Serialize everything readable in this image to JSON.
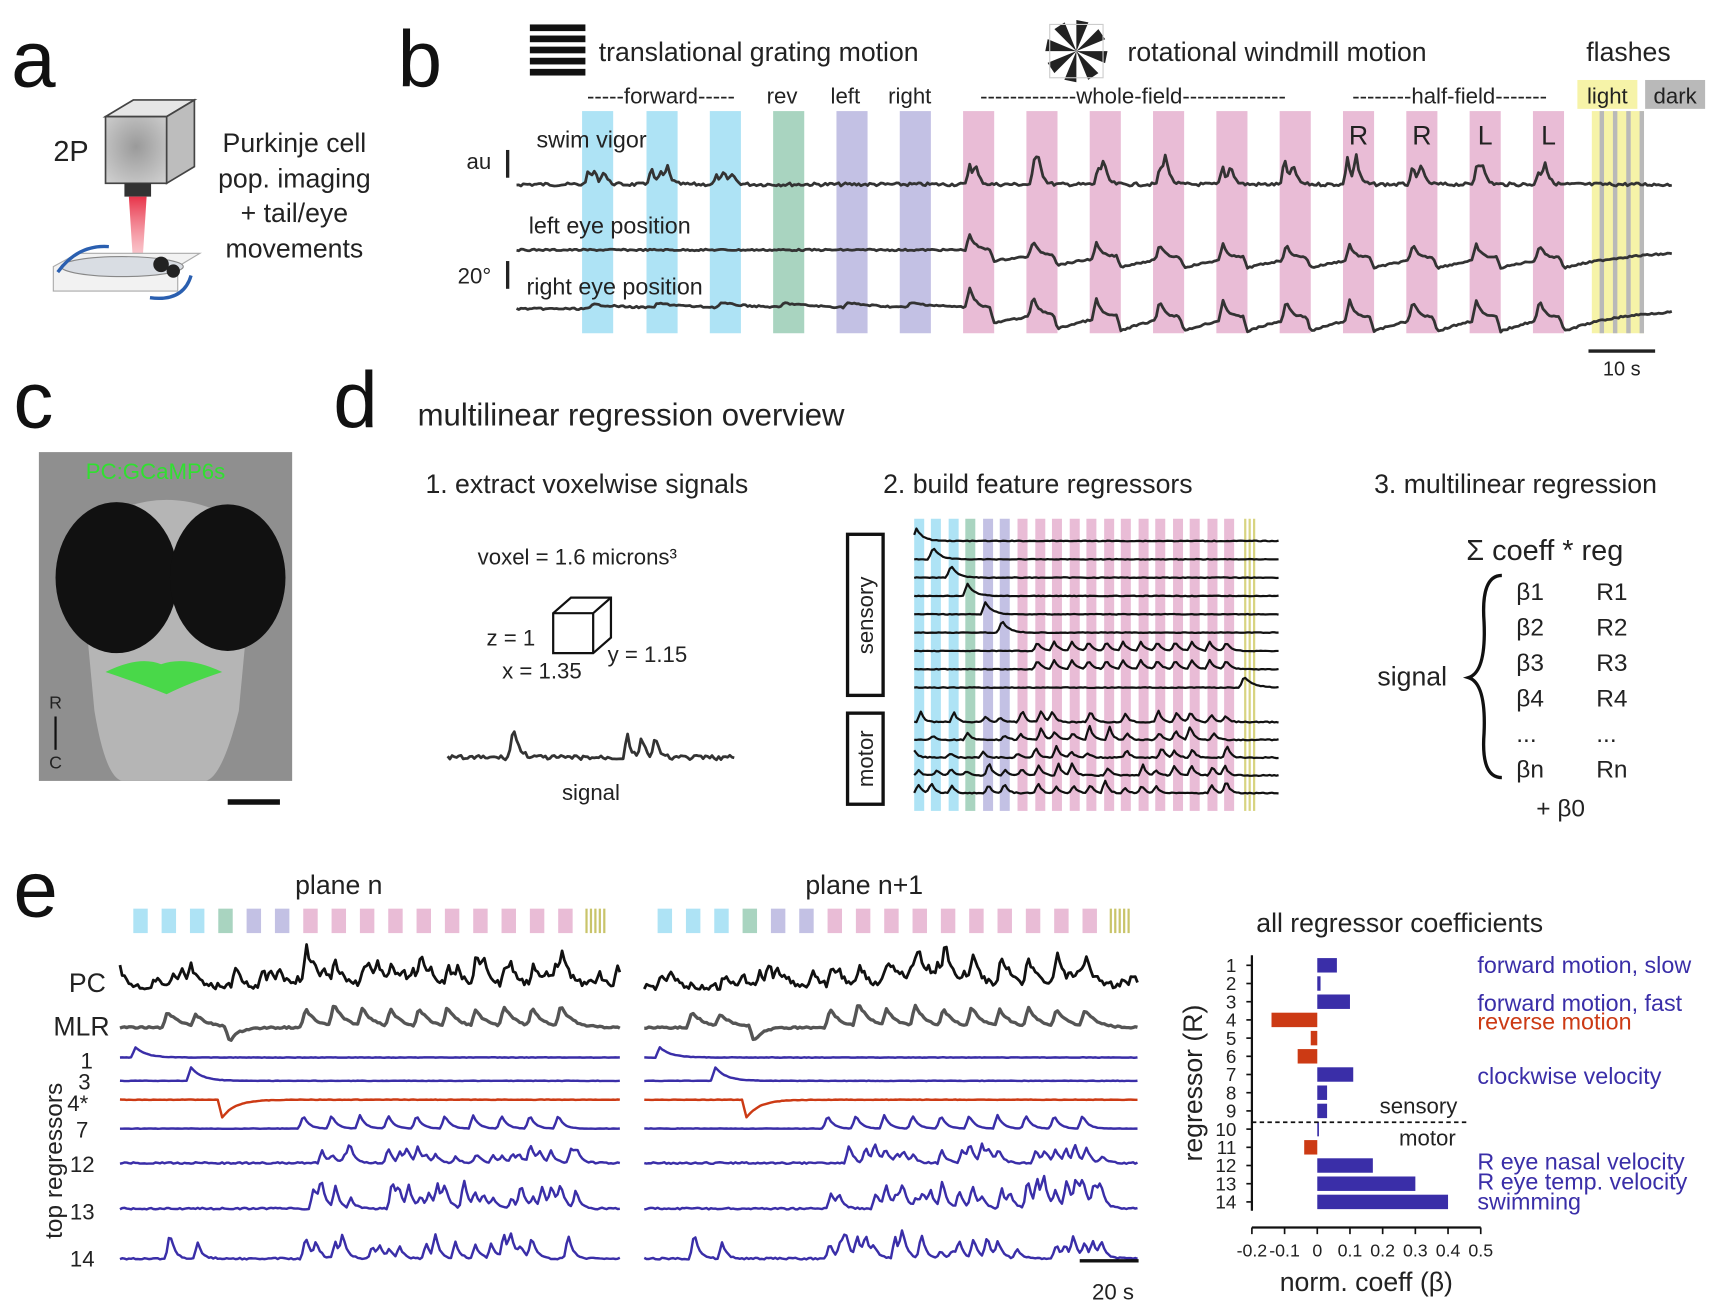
{
  "panel_labels": [
    "a",
    "b",
    "c",
    "d",
    "e"
  ],
  "a": {
    "microscope": "2P",
    "caption": [
      "Purkinje cell",
      "pop. imaging",
      "+ tail/eye",
      "movements"
    ]
  },
  "b": {
    "legend": [
      "translational grating motion",
      "rotational windmill motion",
      "flashes"
    ],
    "epochs": [
      "-----forward-----",
      "rev",
      "left",
      "right",
      "-------------whole-field--------------",
      "--------half-field-------"
    ],
    "flash_types": [
      "light",
      "dark"
    ],
    "sides": [
      "R",
      "R",
      "L",
      "L"
    ],
    "traces": [
      "swim vigor",
      "left eye position",
      "right eye position"
    ],
    "scale_labels": [
      "au",
      "20°",
      "10 s"
    ]
  },
  "c": {
    "label": "PC:GCaMP6s",
    "orientation": [
      "R",
      "C"
    ]
  },
  "d": {
    "title": "multilinear regression overview",
    "steps": [
      "1. extract voxelwise signals",
      "2. build feature regressors",
      "3. multilinear regression"
    ],
    "voxel": "voxel = 1.6 microns³",
    "dims": [
      "z = 1",
      "x = 1.35",
      "y = 1.15"
    ],
    "signal": "signal",
    "groups": [
      "sensory",
      "motor"
    ],
    "equation": "Σ coeff * reg",
    "lhs": "signal",
    "coefficients": [
      "β1",
      "β2",
      "β3",
      "β4",
      "...",
      "βn"
    ],
    "regressors": [
      "R1",
      "R2",
      "R3",
      "R4",
      "...",
      "Rn"
    ],
    "intercept": "+ β0"
  },
  "e": {
    "planes": [
      "plane n",
      "plane n+1"
    ],
    "traces": [
      "PC",
      "MLR",
      "1",
      "3",
      "4*",
      "7",
      "12",
      "13",
      "14"
    ],
    "trace_axis": "top regressors",
    "scale": "20 s"
  },
  "chart_data": {
    "type": "barh",
    "title": "all regressor coefficients",
    "x_label": "norm. coeff (β)",
    "y_label": "regressor (R)",
    "categories": [
      "1",
      "2",
      "3",
      "4",
      "5",
      "6",
      "7",
      "8",
      "9",
      "10",
      "11",
      "12",
      "13",
      "14"
    ],
    "values": [
      0.06,
      0.01,
      0.1,
      -0.14,
      -0.02,
      -0.06,
      0.11,
      0.03,
      0.03,
      0,
      -0.04,
      0.17,
      0.3,
      0.4
    ],
    "xlim": [
      -0.2,
      0.5
    ],
    "xticks": [
      -0.2,
      -0.1,
      0,
      0.1,
      0.2,
      0.3,
      0.4,
      0.5
    ],
    "color": "#3a2ea8",
    "negative_color": "#cc3a14",
    "divider_labels": [
      "sensory",
      "motor"
    ],
    "annotations": [
      "forward motion, slow",
      "forward motion, fast",
      "reverse motion",
      "clockwise velocity",
      "R eye nasal velocity",
      "R eye temp. velocity",
      "swimming"
    ]
  }
}
